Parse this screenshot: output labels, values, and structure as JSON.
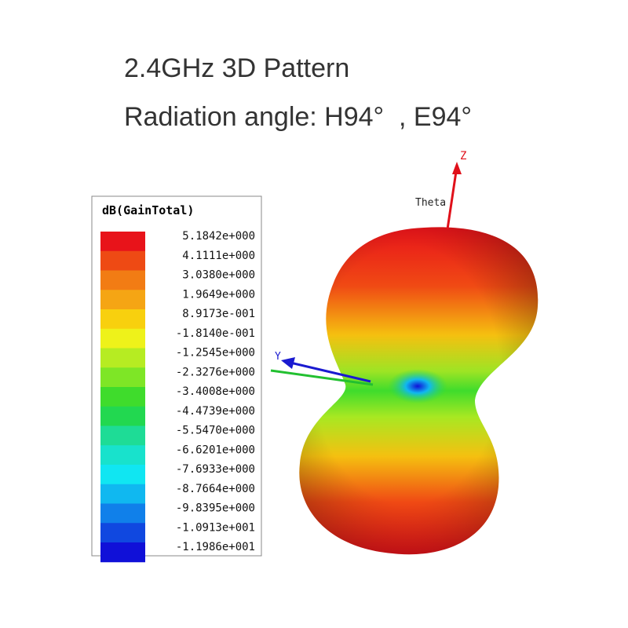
{
  "header": {
    "title": "2.4GHz 3D Pattern",
    "subtitle": "Radiation angle: H94°  , E94°"
  },
  "legend": {
    "title": "dB(GainTotal)",
    "entries": [
      {
        "label": "5.1842e+000",
        "color": "#e8131a"
      },
      {
        "label": "4.1111e+000",
        "color": "#ee4a14"
      },
      {
        "label": "3.0380e+000",
        "color": "#f27c14"
      },
      {
        "label": "1.9649e+000",
        "color": "#f5a514"
      },
      {
        "label": "8.9173e-001",
        "color": "#f8d00e"
      },
      {
        "label": "-1.8140e-001",
        "color": "#eef21a"
      },
      {
        "label": "-1.2545e+000",
        "color": "#b6ec22"
      },
      {
        "label": "-2.3276e+000",
        "color": "#7ee626"
      },
      {
        "label": "-3.4008e+000",
        "color": "#3fdc2c"
      },
      {
        "label": "-4.4739e+000",
        "color": "#22d850"
      },
      {
        "label": "-5.5470e+000",
        "color": "#1edc96"
      },
      {
        "label": "-6.6201e+000",
        "color": "#18e2cc"
      },
      {
        "label": "-7.6933e+000",
        "color": "#10e6f2"
      },
      {
        "label": "-8.7664e+000",
        "color": "#10b8f0"
      },
      {
        "label": "-9.8395e+000",
        "color": "#1080ea"
      },
      {
        "label": "-1.0913e+001",
        "color": "#1048e0"
      },
      {
        "label": "-1.1986e+001",
        "color": "#1010d8"
      }
    ]
  },
  "axes": {
    "z": "Z",
    "theta": "Theta",
    "y": "Y"
  }
}
